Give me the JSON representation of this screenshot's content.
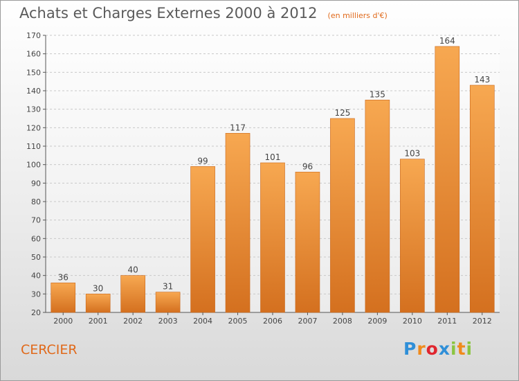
{
  "header": {
    "title": "Achats et Charges Externes 2000 à 2012",
    "subtitle": "(en milliers d'€)"
  },
  "commune": "CERCIER",
  "logo": {
    "text": "Proxiti",
    "letters": [
      {
        "char": "P",
        "color": "#2f8fd8"
      },
      {
        "char": "r",
        "color": "#f08a1c"
      },
      {
        "char": "o",
        "color": "#e0262f"
      },
      {
        "char": "x",
        "color": "#2f8fd8"
      },
      {
        "char": "i",
        "color": "#8bc541"
      },
      {
        "char": "t",
        "color": "#f08a1c"
      },
      {
        "char": "i",
        "color": "#8bc541"
      }
    ]
  },
  "colors": {
    "bar_top": "#f7a851",
    "bar_bottom": "#d4701f",
    "accent": "#e0691a",
    "grid": "#c8c8c8"
  },
  "chart_data": {
    "type": "bar",
    "title": "Achats et Charges Externes 2000 à 2012",
    "subtitle": "(en milliers d'€)",
    "categories": [
      "2000",
      "2001",
      "2002",
      "2003",
      "2004",
      "2005",
      "2006",
      "2007",
      "2008",
      "2009",
      "2010",
      "2011",
      "2012"
    ],
    "values": [
      36,
      30,
      40,
      31,
      99,
      117,
      101,
      96,
      125,
      135,
      103,
      164,
      143
    ],
    "ylim": [
      20,
      170
    ],
    "yticks": [
      20,
      30,
      40,
      50,
      60,
      70,
      80,
      90,
      100,
      110,
      120,
      130,
      140,
      150,
      160,
      170
    ],
    "grid": true,
    "data_labels": true
  }
}
